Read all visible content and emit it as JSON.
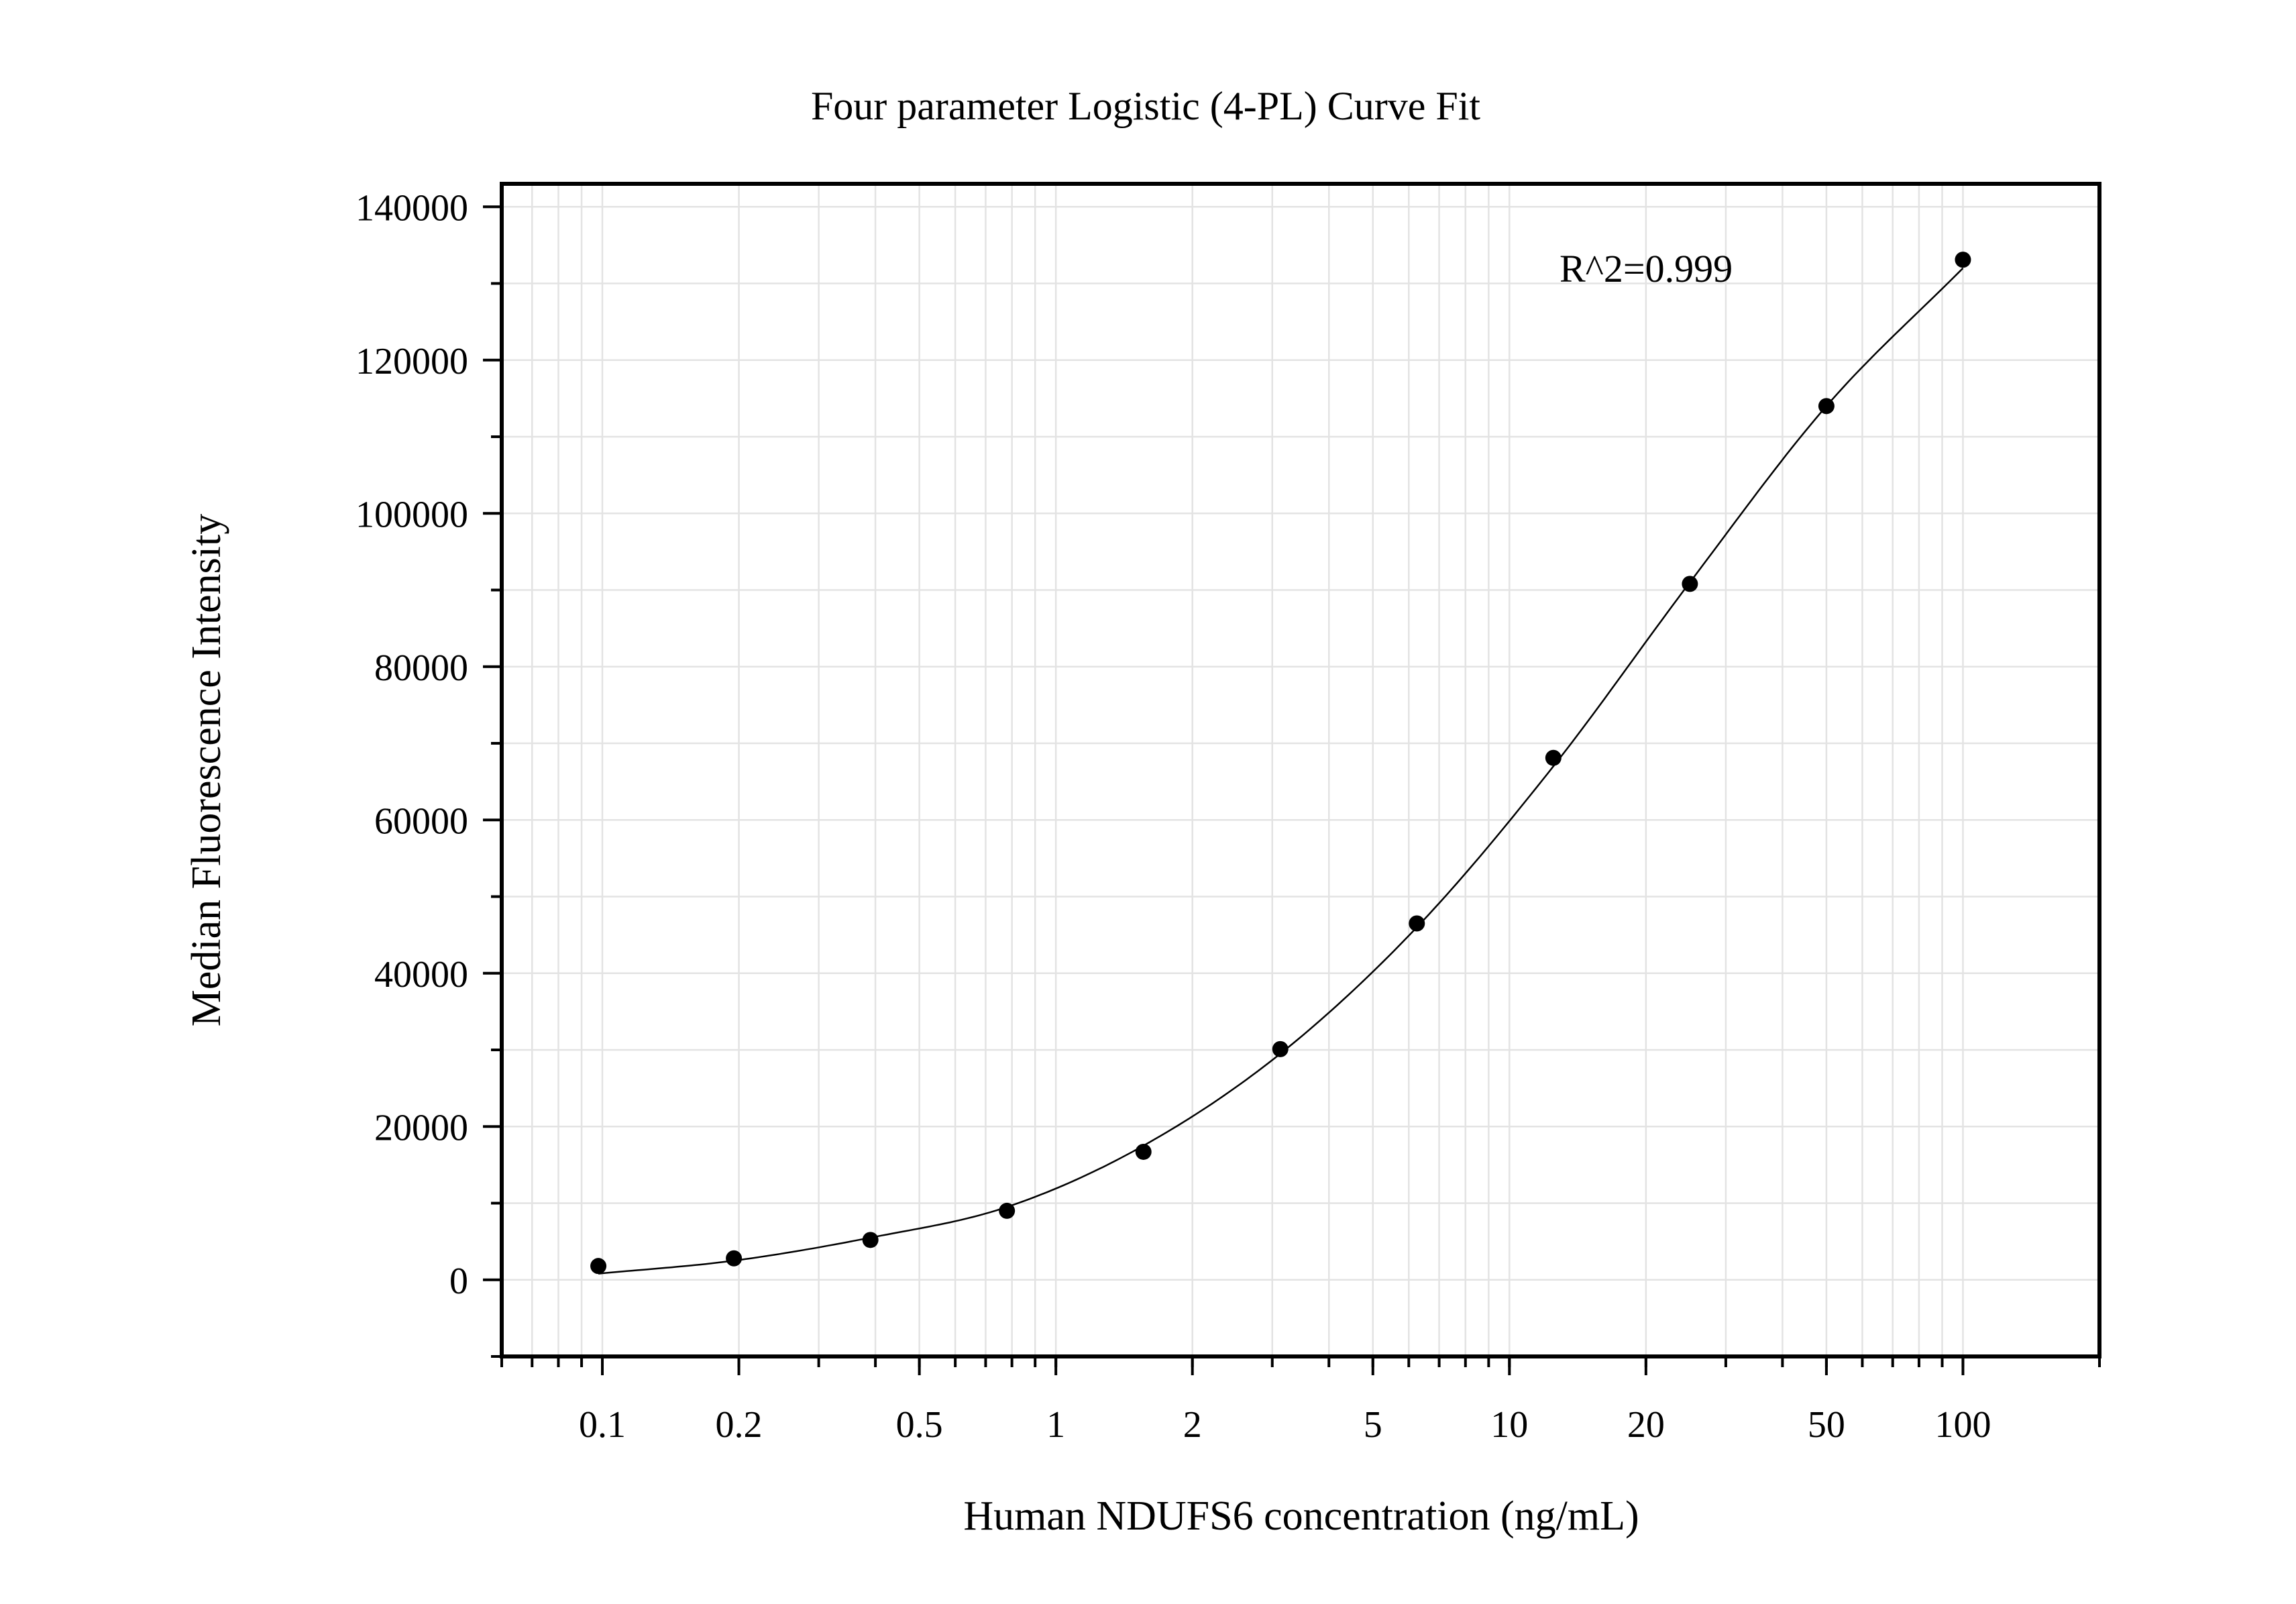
{
  "chart_data": {
    "type": "scatter",
    "title": "Four parameter Logistic (4-PL) Curve Fit",
    "xlabel": "Human NDUFS6 concentration (ng/mL)",
    "ylabel": "Median Fluorescence Intensity",
    "xscale": "log",
    "xlim": [
      0.06,
      200
    ],
    "ylim": [
      -10000,
      143000
    ],
    "xticks": [
      0.1,
      0.2,
      0.5,
      1,
      2,
      5,
      10,
      20,
      50,
      100
    ],
    "xtick_labels": [
      "0.1",
      "0.2",
      "0.5",
      "1",
      "2",
      "5",
      "10",
      "20",
      "50",
      "100"
    ],
    "yticks": [
      0,
      20000,
      40000,
      60000,
      80000,
      100000,
      120000,
      140000
    ],
    "ytick_labels": [
      "0",
      "20000",
      "40000",
      "60000",
      "80000",
      "100000",
      "120000",
      "140000"
    ],
    "grid": true,
    "annotation": "R^2=0.999",
    "series": [
      {
        "kind": "points",
        "x": [
          0.098,
          0.195,
          0.39,
          0.78,
          1.56,
          3.125,
          6.25,
          12.5,
          25,
          50,
          100
        ],
        "y": [
          1800,
          2800,
          5200,
          9000,
          16700,
          30100,
          46500,
          68100,
          90800,
          114000,
          133100
        ]
      },
      {
        "kind": "fit-curve",
        "model": "4-PL",
        "x": [
          0.098,
          0.195,
          0.39,
          0.78,
          1.56,
          3.125,
          6.25,
          12.5,
          25,
          50,
          100
        ],
        "y": [
          800,
          2500,
          5500,
          9500,
          17500,
          29500,
          46000,
          67000,
          91000,
          114000,
          132000
        ]
      }
    ]
  }
}
